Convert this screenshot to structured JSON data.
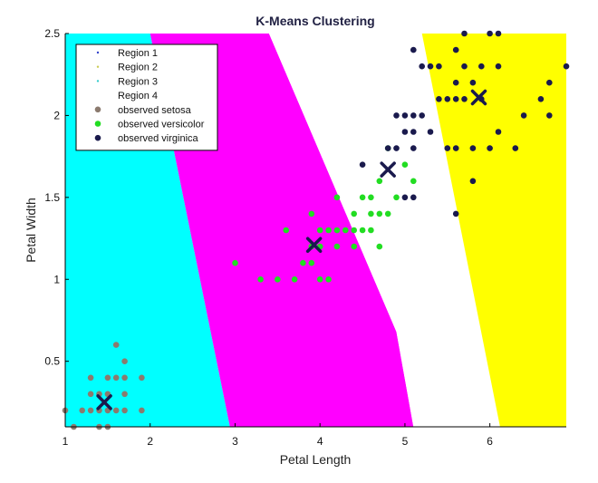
{
  "chart_data": {
    "type": "scatter",
    "title": "K-Means Clustering",
    "xlabel": "Petal Length",
    "ylabel": "Petal Width",
    "xlim": [
      1,
      6.9
    ],
    "ylim": [
      0.1,
      2.5
    ],
    "xticks": [
      1,
      2,
      3,
      4,
      5,
      6
    ],
    "yticks": [
      0.5,
      1,
      1.5,
      2,
      2.5
    ],
    "xtick_labels": [
      "1",
      "2",
      "3",
      "4",
      "5",
      "6"
    ],
    "ytick_labels": [
      "0.5",
      "1",
      "1.5",
      "2",
      "2.5"
    ],
    "grid": false,
    "legend_position": "top-left",
    "regions": [
      {
        "name": "Region 1",
        "color": "#00ffff",
        "polygon": [
          [
            1,
            0.1
          ],
          [
            1,
            2.5
          ],
          [
            2.0,
            2.5
          ],
          [
            2.94,
            0.1
          ]
        ]
      },
      {
        "name": "Region 2",
        "color": "#ff00ff",
        "polygon": [
          [
            2.0,
            2.5
          ],
          [
            2.94,
            0.1
          ],
          [
            5.1,
            0.1
          ],
          [
            4.9,
            0.68
          ],
          [
            3.4,
            2.5
          ]
        ]
      },
      {
        "name": "Region 3",
        "color": "#ffffff",
        "polygon": [
          [
            3.4,
            2.5
          ],
          [
            4.9,
            0.68
          ],
          [
            5.1,
            0.1
          ],
          [
            6.12,
            0.1
          ],
          [
            5.2,
            2.5
          ]
        ]
      },
      {
        "name": "Region 4",
        "color": "#ffff00",
        "polygon": [
          [
            5.2,
            2.5
          ],
          [
            6.12,
            0.1
          ],
          [
            6.9,
            0.1
          ],
          [
            6.9,
            2.5
          ]
        ]
      }
    ],
    "legend": [
      {
        "label": "Region 1",
        "marker": "dot",
        "color": "#3344cc"
      },
      {
        "label": "Region 2",
        "marker": "dot",
        "color": "#cccc55"
      },
      {
        "label": "Region 3",
        "marker": "dot",
        "color": "#33cccc"
      },
      {
        "label": "Region 4",
        "marker": "none",
        "color": "#ffffff"
      },
      {
        "label": "observed setosa",
        "marker": "circle",
        "color": "#8b7a6e"
      },
      {
        "label": "observed versicolor",
        "marker": "circle",
        "color": "#22dd22"
      },
      {
        "label": "observed virginica",
        "marker": "circle",
        "color": "#1a1a4d"
      }
    ],
    "series": [
      {
        "name": "observed setosa",
        "color": "#8b7a6e",
        "points": [
          [
            1.0,
            0.2
          ],
          [
            1.1,
            0.1
          ],
          [
            1.2,
            0.2
          ],
          [
            1.3,
            0.2
          ],
          [
            1.3,
            0.3
          ],
          [
            1.3,
            0.4
          ],
          [
            1.4,
            0.1
          ],
          [
            1.4,
            0.2
          ],
          [
            1.4,
            0.3
          ],
          [
            1.5,
            0.1
          ],
          [
            1.5,
            0.2
          ],
          [
            1.5,
            0.3
          ],
          [
            1.5,
            0.4
          ],
          [
            1.6,
            0.2
          ],
          [
            1.6,
            0.4
          ],
          [
            1.6,
            0.6
          ],
          [
            1.7,
            0.2
          ],
          [
            1.7,
            0.3
          ],
          [
            1.7,
            0.4
          ],
          [
            1.7,
            0.5
          ],
          [
            1.9,
            0.2
          ],
          [
            1.9,
            0.4
          ]
        ]
      },
      {
        "name": "observed versicolor",
        "color": "#22dd22",
        "points": [
          [
            3.0,
            1.1
          ],
          [
            3.3,
            1.0
          ],
          [
            3.5,
            1.0
          ],
          [
            3.6,
            1.3
          ],
          [
            3.7,
            1.0
          ],
          [
            3.8,
            1.1
          ],
          [
            3.9,
            1.1
          ],
          [
            3.9,
            1.2
          ],
          [
            3.9,
            1.4
          ],
          [
            4.0,
            1.0
          ],
          [
            4.0,
            1.2
          ],
          [
            4.0,
            1.3
          ],
          [
            4.1,
            1.0
          ],
          [
            4.1,
            1.3
          ],
          [
            4.2,
            1.2
          ],
          [
            4.2,
            1.3
          ],
          [
            4.2,
            1.5
          ],
          [
            4.3,
            1.3
          ],
          [
            4.4,
            1.2
          ],
          [
            4.4,
            1.3
          ],
          [
            4.4,
            1.4
          ],
          [
            4.5,
            1.3
          ],
          [
            4.5,
            1.5
          ],
          [
            4.6,
            1.3
          ],
          [
            4.6,
            1.4
          ],
          [
            4.6,
            1.5
          ],
          [
            4.7,
            1.2
          ],
          [
            4.7,
            1.4
          ],
          [
            4.7,
            1.6
          ],
          [
            4.8,
            1.4
          ],
          [
            4.8,
            1.8
          ],
          [
            4.9,
            1.5
          ],
          [
            5.0,
            1.7
          ],
          [
            5.1,
            1.6
          ]
        ]
      },
      {
        "name": "observed virginica",
        "color": "#1a1a4d",
        "points": [
          [
            4.5,
            1.7
          ],
          [
            4.8,
            1.8
          ],
          [
            4.9,
            1.8
          ],
          [
            4.9,
            2.0
          ],
          [
            5.0,
            1.5
          ],
          [
            5.0,
            1.9
          ],
          [
            5.0,
            2.0
          ],
          [
            5.1,
            1.5
          ],
          [
            5.1,
            1.8
          ],
          [
            5.1,
            1.9
          ],
          [
            5.1,
            2.0
          ],
          [
            5.1,
            2.4
          ],
          [
            5.2,
            2.0
          ],
          [
            5.2,
            2.3
          ],
          [
            5.3,
            1.9
          ],
          [
            5.3,
            2.3
          ],
          [
            5.4,
            2.1
          ],
          [
            5.4,
            2.3
          ],
          [
            5.5,
            1.8
          ],
          [
            5.5,
            2.1
          ],
          [
            5.6,
            1.4
          ],
          [
            5.6,
            1.8
          ],
          [
            5.6,
            2.1
          ],
          [
            5.6,
            2.2
          ],
          [
            5.6,
            2.4
          ],
          [
            5.7,
            2.1
          ],
          [
            5.7,
            2.3
          ],
          [
            5.7,
            2.5
          ],
          [
            5.8,
            1.6
          ],
          [
            5.8,
            1.8
          ],
          [
            5.8,
            2.2
          ],
          [
            5.9,
            2.1
          ],
          [
            5.9,
            2.3
          ],
          [
            6.0,
            1.8
          ],
          [
            6.0,
            2.5
          ],
          [
            6.1,
            1.9
          ],
          [
            6.1,
            2.3
          ],
          [
            6.1,
            2.5
          ],
          [
            6.3,
            1.8
          ],
          [
            6.4,
            2.0
          ],
          [
            6.6,
            2.1
          ],
          [
            6.7,
            2.0
          ],
          [
            6.7,
            2.2
          ],
          [
            6.9,
            2.3
          ]
        ]
      }
    ],
    "centroids": [
      [
        1.46,
        0.25
      ],
      [
        3.93,
        1.21
      ],
      [
        4.8,
        1.67
      ],
      [
        5.87,
        2.11
      ]
    ],
    "centroid_color": "#1a1a4d"
  }
}
